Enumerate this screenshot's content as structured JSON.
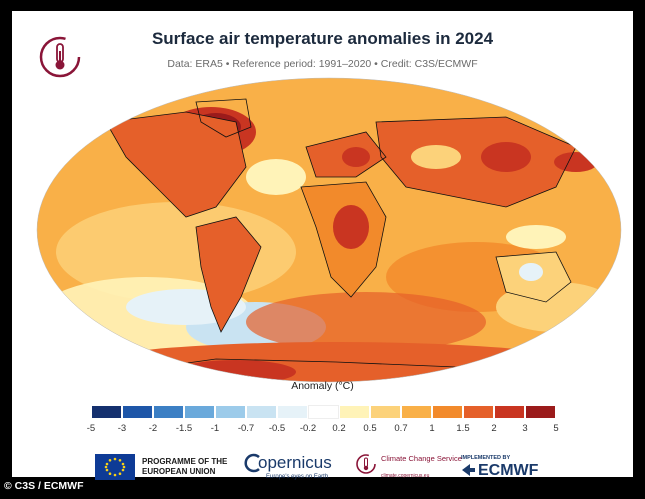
{
  "header": {
    "title": "Surface air temperature anomalies in 2024",
    "subtitle": "Data: ERA5 • Reference period: 1991–2020 • Credit: C3S/ECMWF"
  },
  "legend": {
    "title": "Anomaly (°C)",
    "ticks": [
      "-5",
      "-3",
      "-2",
      "-1.5",
      "-1",
      "-0.7",
      "-0.5",
      "-0.2",
      "0.2",
      "0.5",
      "0.7",
      "1",
      "1.5",
      "2",
      "3",
      "5"
    ],
    "colors": [
      "#14306e",
      "#1e56a8",
      "#3c7fc4",
      "#6aa9db",
      "#9ccbea",
      "#c9e3f2",
      "#e6f2f8",
      "#ffffff",
      "#fff3b8",
      "#fcd27a",
      "#f9b048",
      "#f28a2b",
      "#e5602a",
      "#c93521",
      "#9b1b1b"
    ]
  },
  "footer": {
    "eu_text": "PROGRAMME OF THE EUROPEAN UNION",
    "copernicus": "opernicus",
    "copernicus_sub": "Europe's eyes on Earth",
    "c3s_text": "Climate Change Service",
    "c3s_sub": "climate.copernicus.eu",
    "implemented": "IMPLEMENTED BY",
    "ecmwf": "ECMWF"
  },
  "credit": "© C3S / ECMWF"
}
